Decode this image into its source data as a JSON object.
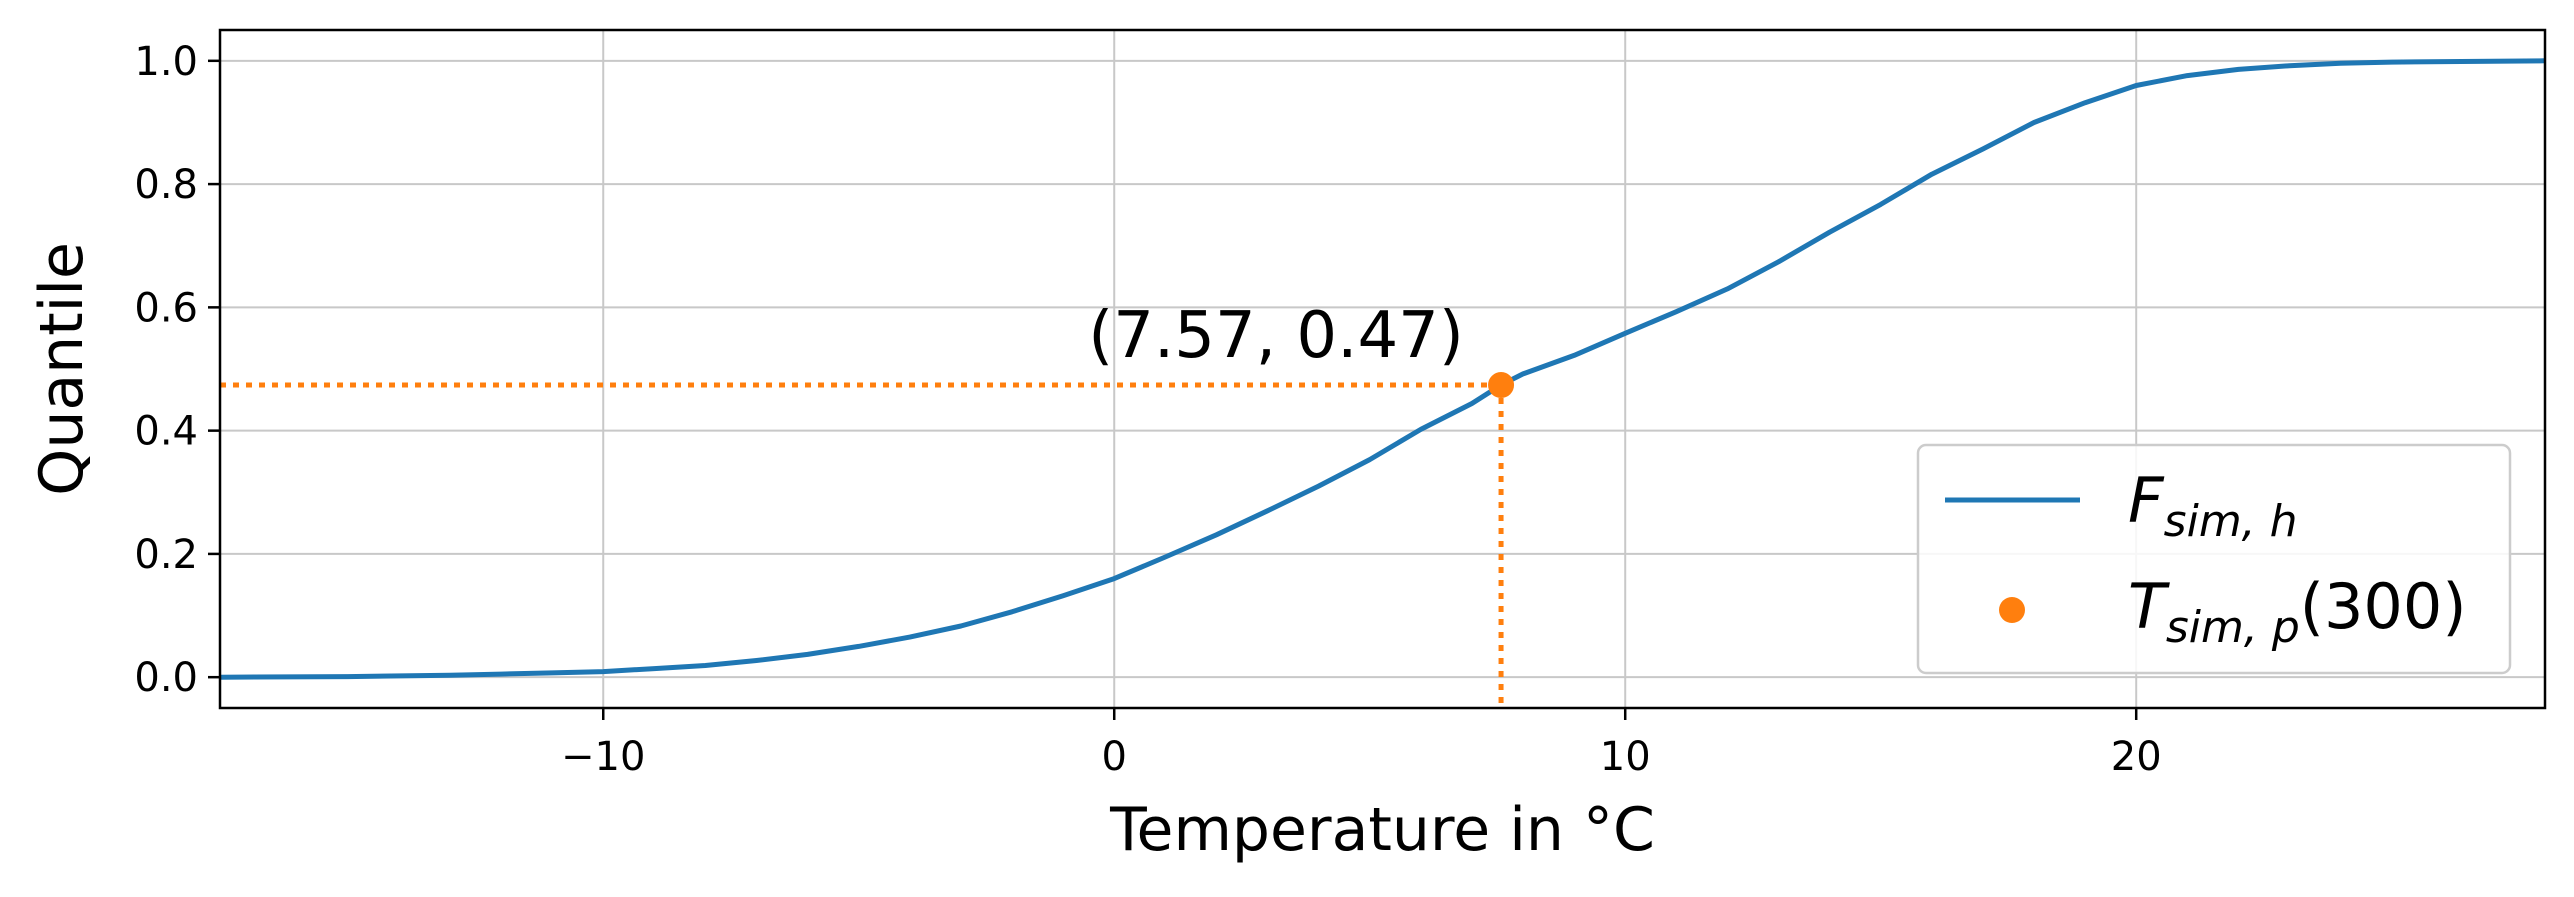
{
  "chart_data": {
    "type": "line",
    "xlabel": "Temperature in °C",
    "ylabel": "Quantile",
    "xlim": [
      -17.5,
      28
    ],
    "ylim": [
      -0.05,
      1.05
    ],
    "xticks": [
      -10,
      0,
      10,
      20
    ],
    "xtick_labels": [
      "−10",
      "0",
      "10",
      "20"
    ],
    "yticks": [
      0.0,
      0.2,
      0.4,
      0.6,
      0.8,
      1.0
    ],
    "ytick_labels": [
      "0.0",
      "0.2",
      "0.4",
      "0.6",
      "0.8",
      "1.0"
    ],
    "grid": true,
    "legend_position": "lower-right",
    "series": [
      {
        "name": "F_{sim,h}",
        "kind": "line",
        "color": "#1f77b4",
        "x": [
          -17.5,
          -15,
          -13,
          -12,
          -11,
          -10,
          -9,
          -8,
          -7,
          -6,
          -5,
          -4,
          -3,
          -2,
          -1,
          0,
          1,
          2,
          3,
          4,
          5,
          6,
          7,
          7.57,
          8,
          9,
          10,
          11,
          12,
          13,
          14,
          15,
          16,
          17,
          18,
          19,
          20,
          21,
          22,
          23,
          24,
          25,
          28
        ],
        "y": [
          0.0,
          0.001,
          0.003,
          0.005,
          0.007,
          0.009,
          0.014,
          0.019,
          0.027,
          0.037,
          0.05,
          0.065,
          0.083,
          0.106,
          0.132,
          0.16,
          0.195,
          0.231,
          0.27,
          0.31,
          0.353,
          0.402,
          0.444,
          0.474,
          0.492,
          0.522,
          0.558,
          0.593,
          0.63,
          0.674,
          0.722,
          0.767,
          0.816,
          0.857,
          0.9,
          0.932,
          0.96,
          0.976,
          0.986,
          0.992,
          0.996,
          0.998,
          1.0
        ]
      },
      {
        "name": "T_{sim,p}(300)",
        "kind": "point",
        "color": "#ff7f0e",
        "x": [
          7.57
        ],
        "y": [
          0.474
        ]
      }
    ],
    "annotation": {
      "text": "(7.57, 0.47)",
      "x": 7.57,
      "y": 0.474
    },
    "legend": [
      {
        "base": "F",
        "sub": "sim, h",
        "suffix": ""
      },
      {
        "base": "T",
        "sub": "sim, p",
        "suffix": "(300)"
      }
    ]
  }
}
